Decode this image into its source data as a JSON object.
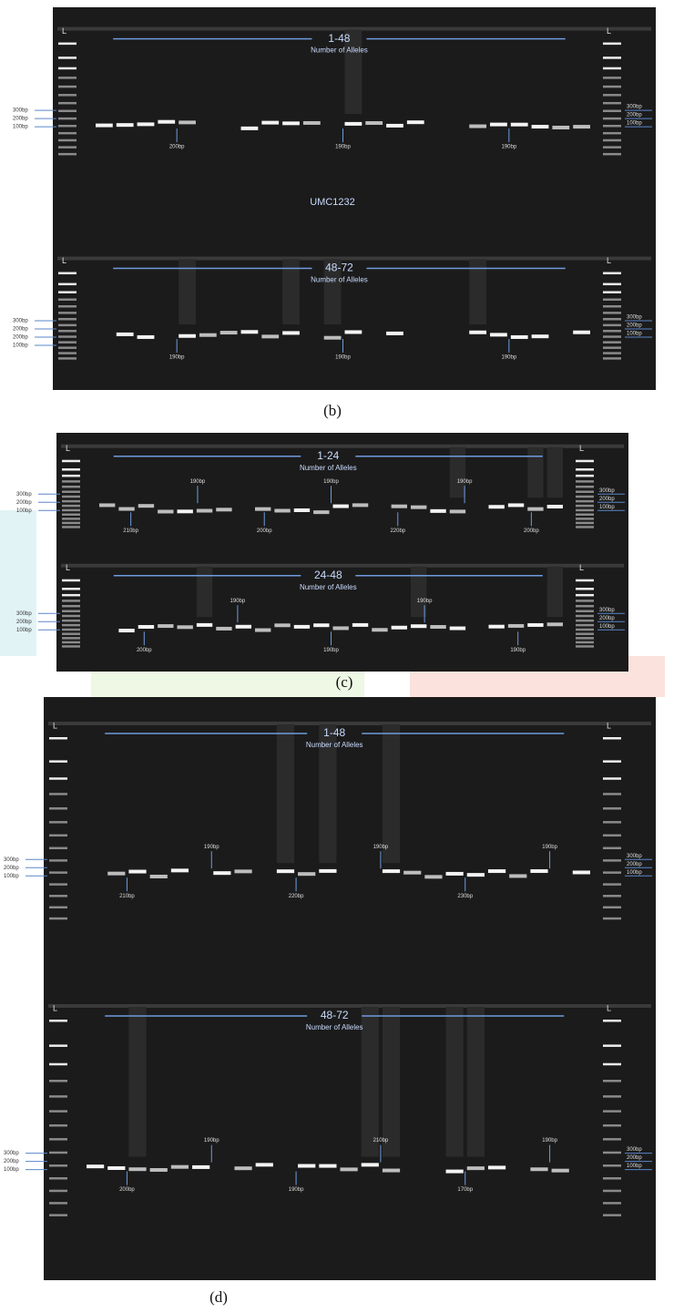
{
  "panels": [
    {
      "caption": "(b)",
      "marker": "UMC1232",
      "gels": [
        {
          "ladder_left": "L",
          "ladder_right": "L",
          "range": "1-48",
          "subtitle": "Number of Alleles",
          "left_sizes": [
            "300bp",
            "200bp",
            "100bp"
          ],
          "right_sizes": [
            "300bp",
            "200bp",
            "100bp"
          ],
          "band_labels": [
            "200bp",
            "190bp",
            "190bp"
          ]
        },
        {
          "ladder_left": "L",
          "ladder_right": "L",
          "range": "48-72",
          "subtitle": "Number of Alleles",
          "left_sizes": [
            "300bp",
            "200bp",
            "200bp",
            "100bp"
          ],
          "right_sizes": [
            "300bp",
            "200bp",
            "100bp"
          ],
          "band_labels": [
            "190bp",
            "190bp",
            "190bp"
          ]
        }
      ]
    },
    {
      "caption": "(c)",
      "gels": [
        {
          "ladder_left": "L",
          "ladder_right": "L",
          "range": "1-24",
          "subtitle": "Number of Alleles",
          "left_sizes": [
            "300bp",
            "200bp",
            "100bp"
          ],
          "right_sizes": [
            "300bp",
            "200bp",
            "100bp"
          ],
          "band_labels": [
            "210bp",
            "190bp",
            "200bp",
            "190bp",
            "220bp",
            "190bp",
            "200bp"
          ]
        },
        {
          "ladder_left": "L",
          "ladder_right": "L",
          "range": "24-48",
          "subtitle": "Number of Alleles",
          "left_sizes": [
            "300bp",
            "200bp",
            "100bp"
          ],
          "right_sizes": [
            "300bp",
            "200bp",
            "100bp"
          ],
          "band_labels": [
            "200bp",
            "190bp",
            "190bp",
            "190bp",
            "190bp"
          ]
        }
      ]
    },
    {
      "caption": "(d)",
      "gels": [
        {
          "ladder_left": "L",
          "ladder_right": "L",
          "range": "1-48",
          "subtitle": "Number of Alleles",
          "left_sizes": [
            "300bp",
            "200bp",
            "100bp"
          ],
          "right_sizes": [
            "300bp",
            "200bp",
            "100bp"
          ],
          "band_labels": [
            "210bp",
            "190bp",
            "220bp",
            "190bp",
            "230bp",
            "190bp"
          ]
        },
        {
          "ladder_left": "L",
          "ladder_right": "L",
          "range": "48-72",
          "subtitle": "Number of Alleles",
          "left_sizes": [
            "300bp",
            "200bp",
            "100bp"
          ],
          "right_sizes": [
            "300bp",
            "200bp",
            "100bp"
          ],
          "band_labels": [
            "200bp",
            "190bp",
            "190bp",
            "210bp",
            "170bp",
            "190bp"
          ]
        }
      ]
    }
  ]
}
